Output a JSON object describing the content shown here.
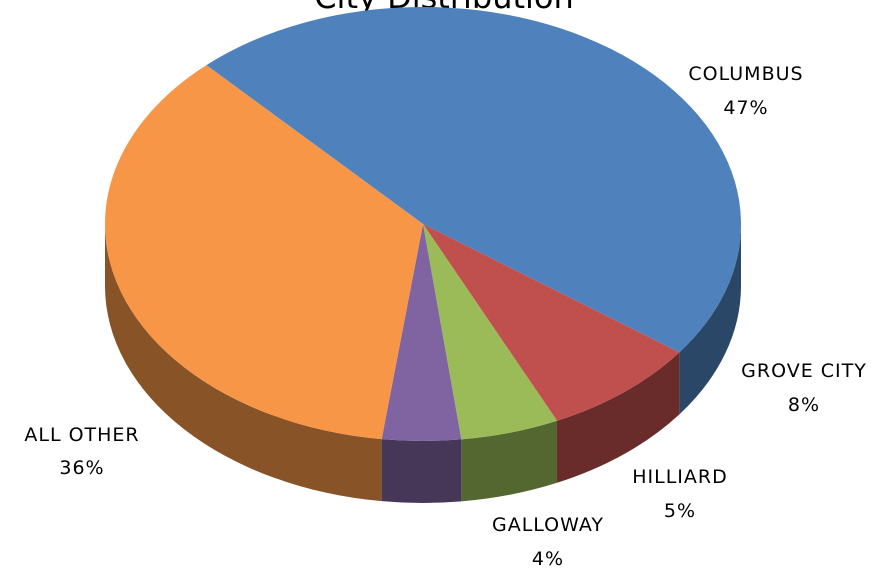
{
  "chart_data": {
    "type": "pie",
    "style": "3d",
    "title": "City Distribution",
    "slices": [
      {
        "label": "COLUMBUS",
        "percent_label": "47%",
        "value": 47,
        "color": "#4F81BD"
      },
      {
        "label": "GROVE CITY",
        "percent_label": "8%",
        "value": 8,
        "color": "#C0504D"
      },
      {
        "label": "HILLIARD",
        "percent_label": "5%",
        "value": 5,
        "color": "#9BBB59"
      },
      {
        "label": "GALLOWAY",
        "percent_label": "4%",
        "value": 4,
        "color": "#8064A2"
      },
      {
        "label": "ALL OTHER",
        "percent_label": "36%",
        "value": 36,
        "color": "#F79646"
      }
    ]
  }
}
